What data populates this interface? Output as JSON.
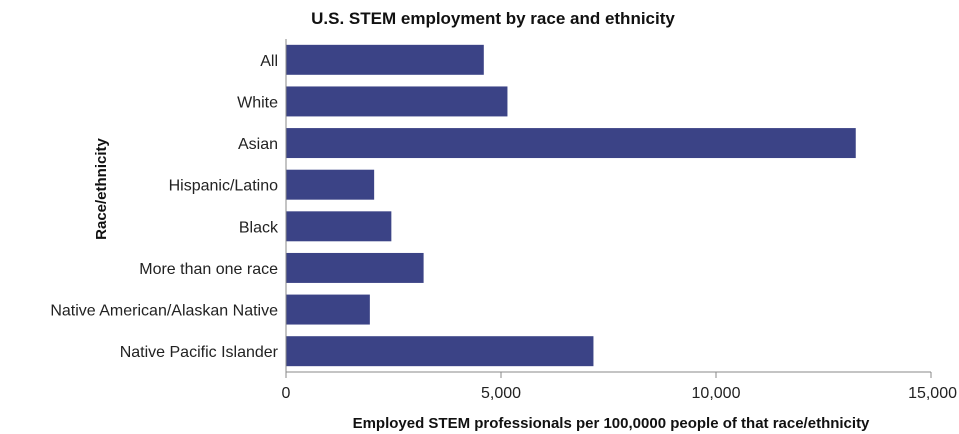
{
  "chart_data": {
    "type": "bar",
    "orientation": "horizontal",
    "title": "U.S. STEM employment by race and ethnicity",
    "xlabel": "Employed STEM professionals per 100,0000 people of that race/ethnicity",
    "ylabel": "Race/ethnicity",
    "categories": [
      "All",
      "White",
      "Asian",
      "Hispanic/Latino",
      "Black",
      "More than one race",
      "Native American/Alaskan Native",
      "Native Pacific Islander"
    ],
    "values": [
      4600,
      5150,
      13250,
      2050,
      2450,
      3200,
      1950,
      7150
    ],
    "xlim": [
      0,
      15000
    ],
    "xticks": [
      0,
      5000,
      10000,
      15000
    ],
    "xtick_labels": [
      "0",
      "5,000",
      "10,000",
      "15,000"
    ],
    "grid": false,
    "legend": "none",
    "bar_color": "#3b4386"
  }
}
